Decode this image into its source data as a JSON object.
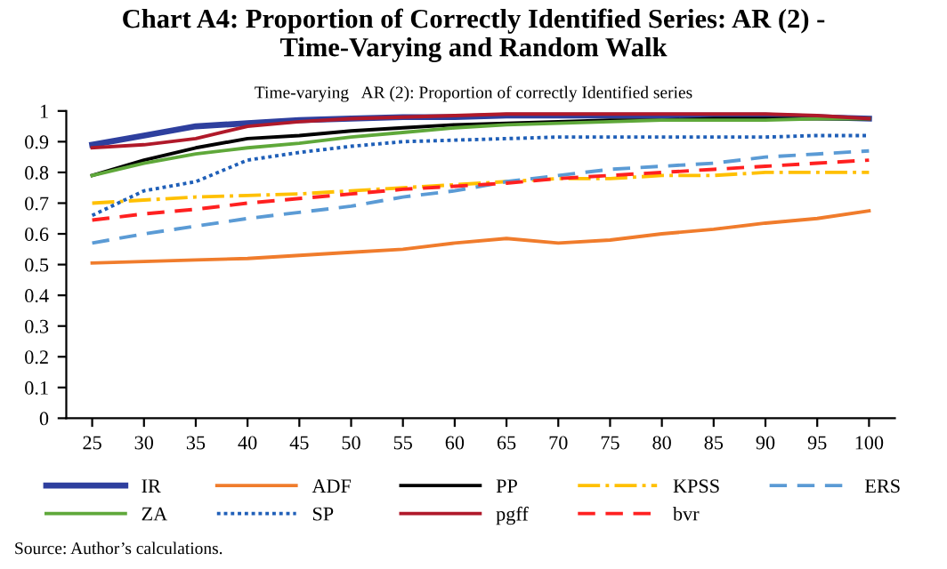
{
  "chart_data": {
    "type": "line",
    "title": "Chart A4: Proportion of Correctly Identified Series: AR (2) -\nTime-Varying and Random Walk",
    "categories": [
      "25",
      "30",
      "35",
      "40",
      "45",
      "50",
      "55",
      "60",
      "65",
      "70",
      "75",
      "80",
      "85",
      "90",
      "95",
      "100"
    ],
    "ylim": [
      0,
      1
    ],
    "yticks": [
      0,
      0.1,
      0.2,
      0.3,
      0.4,
      0.5,
      0.6,
      0.7,
      0.8,
      0.9,
      1
    ],
    "grid": false,
    "legend": "bottom",
    "marker": "none",
    "series": [
      {
        "name": "IR",
        "color": "#2e3f9e",
        "line_style": "solid",
        "values": [
          0.89,
          0.92,
          0.95,
          0.96,
          0.97,
          0.975,
          0.98,
          0.98,
          0.985,
          0.985,
          0.985,
          0.985,
          0.985,
          0.985,
          0.98,
          0.975
        ]
      },
      {
        "name": "ADF",
        "color": "#f07c2c",
        "line_style": "solid",
        "values": [
          0.505,
          0.51,
          0.515,
          0.52,
          0.53,
          0.54,
          0.55,
          0.57,
          0.585,
          0.57,
          0.58,
          0.6,
          0.615,
          0.635,
          0.65,
          0.675
        ]
      },
      {
        "name": "PP",
        "color": "#000000",
        "line_style": "solid",
        "values": [
          0.79,
          0.84,
          0.88,
          0.91,
          0.92,
          0.935,
          0.945,
          0.955,
          0.96,
          0.965,
          0.97,
          0.97,
          0.975,
          0.975,
          0.975,
          0.975
        ]
      },
      {
        "name": "KPSS",
        "color": "#ffc000",
        "line_style": "dashdot",
        "values": [
          0.7,
          0.71,
          0.72,
          0.725,
          0.73,
          0.74,
          0.75,
          0.76,
          0.77,
          0.78,
          0.78,
          0.79,
          0.79,
          0.8,
          0.8,
          0.8
        ]
      },
      {
        "name": "ERS",
        "color": "#5b9bd5",
        "line_style": "dashed",
        "values": [
          0.57,
          0.6,
          0.625,
          0.65,
          0.67,
          0.69,
          0.72,
          0.74,
          0.77,
          0.79,
          0.81,
          0.82,
          0.83,
          0.85,
          0.86,
          0.87
        ]
      },
      {
        "name": "ZA",
        "color": "#5fa83a",
        "line_style": "solid",
        "values": [
          0.79,
          0.83,
          0.86,
          0.88,
          0.895,
          0.915,
          0.93,
          0.945,
          0.955,
          0.96,
          0.965,
          0.97,
          0.97,
          0.97,
          0.975,
          0.975
        ]
      },
      {
        "name": "SP",
        "color": "#1f5fb8",
        "line_style": "dotted",
        "values": [
          0.66,
          0.74,
          0.77,
          0.84,
          0.865,
          0.885,
          0.9,
          0.905,
          0.91,
          0.915,
          0.915,
          0.915,
          0.915,
          0.915,
          0.92,
          0.92
        ]
      },
      {
        "name": "pgff",
        "color": "#b0192a",
        "line_style": "solid",
        "values": [
          0.88,
          0.89,
          0.91,
          0.95,
          0.965,
          0.975,
          0.98,
          0.985,
          0.99,
          0.99,
          0.99,
          0.99,
          0.99,
          0.99,
          0.985,
          0.975
        ]
      },
      {
        "name": "bvr",
        "color": "#ff2020",
        "line_style": "dashed",
        "values": [
          0.645,
          0.665,
          0.68,
          0.7,
          0.715,
          0.73,
          0.745,
          0.755,
          0.765,
          0.78,
          0.79,
          0.8,
          0.81,
          0.82,
          0.83,
          0.84
        ]
      }
    ],
    "annotations": [
      "Time-varying   AR (2): Proportion of correctly Identified series",
      "Source: Author’s calculations."
    ]
  }
}
